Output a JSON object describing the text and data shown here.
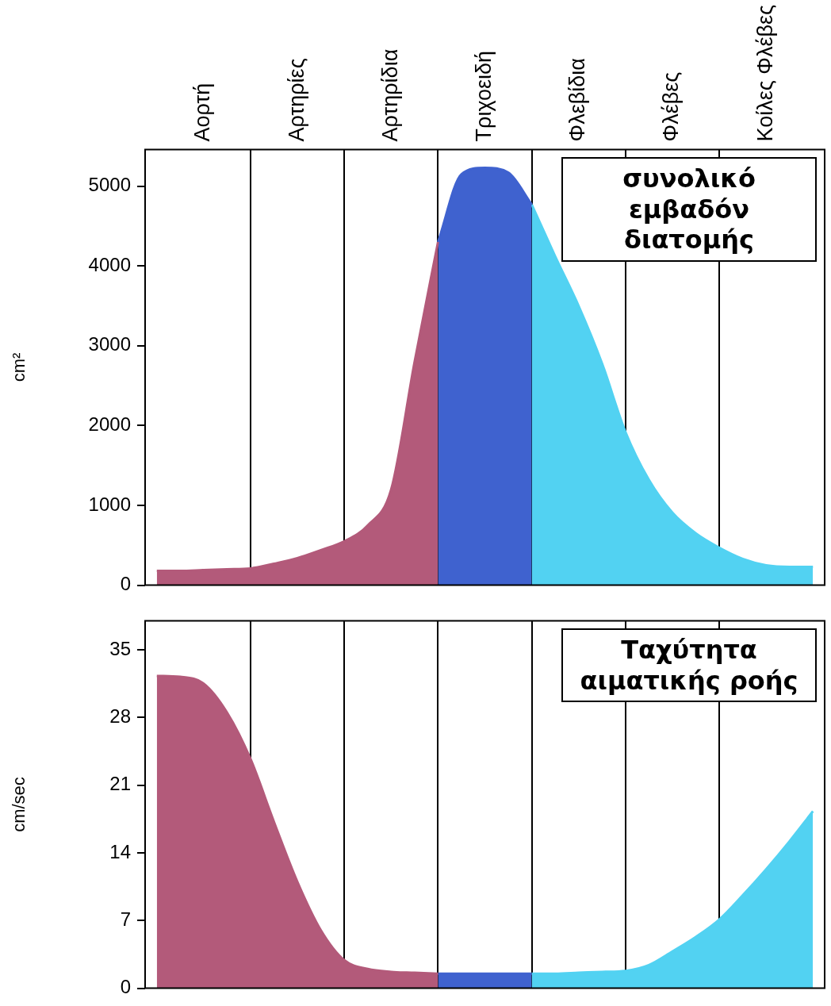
{
  "chart_data": [
    {
      "type": "area",
      "title": "συνολικό εμβαδόν διατομής",
      "ylabel": "cm²",
      "ylim": [
        0,
        5460
      ],
      "categories": [
        null,
        null,
        "Αορτή",
        null,
        null,
        null,
        "Αρτηρίες",
        null,
        null,
        null,
        "Αρτηρίδια",
        null,
        null,
        null,
        "Τριχοειδή",
        null,
        null,
        null,
        "Φλεβίδια",
        null,
        null,
        null,
        "Φλέβες",
        null,
        null,
        null,
        "Κοίλες Φλέβες",
        null,
        null
      ],
      "yticks": [
        0,
        1000,
        2000,
        3000,
        4000,
        5000
      ],
      "grid": "x",
      "legend": false,
      "series": [
        {
          "color": "#b35a7a",
          "values": [
            180,
            180,
            190,
            200,
            210,
            270,
            340,
            440,
            550,
            750,
            1200,
            2800,
            4300,
            null,
            null,
            null,
            null,
            null,
            null,
            null,
            null,
            null,
            null,
            null,
            null,
            null,
            null,
            null,
            null
          ]
        },
        {
          "color": "#3f62cf",
          "values": [
            null,
            null,
            null,
            null,
            null,
            null,
            null,
            null,
            null,
            null,
            null,
            null,
            4300,
            5150,
            5230,
            5170,
            4770,
            null,
            null,
            null,
            null,
            null,
            null,
            null,
            null,
            null,
            null,
            null,
            null
          ]
        },
        {
          "color": "#52d2f2",
          "values": [
            null,
            null,
            null,
            null,
            null,
            null,
            null,
            null,
            null,
            null,
            null,
            null,
            null,
            null,
            null,
            null,
            4770,
            4120,
            3500,
            2780,
            1920,
            1320,
            910,
            650,
            470,
            330,
            250,
            230,
            230
          ]
        }
      ]
    },
    {
      "type": "area",
      "title": "Ταχύτητα αιματικής ροής",
      "ylabel": "cm/sec",
      "ylim": [
        0,
        38
      ],
      "categories": [
        null,
        null,
        null,
        null,
        null,
        null,
        null,
        null,
        null,
        null,
        null,
        null,
        null,
        null,
        null,
        null,
        null,
        null,
        null,
        null,
        null,
        null,
        null,
        null,
        null,
        null,
        null,
        null,
        null
      ],
      "yticks": [
        0,
        7,
        14,
        21,
        28,
        35
      ],
      "grid": "x",
      "legend": false,
      "tick_labels": "y",
      "series": [
        {
          "color": "#b35a7a",
          "values": [
            32.3,
            32.2,
            31.5,
            28.5,
            23.7,
            17.2,
            11,
            6,
            2.9,
            2,
            1.7,
            1.6,
            1.5,
            null,
            null,
            null,
            null,
            null,
            null,
            null,
            null,
            null,
            null,
            null,
            null,
            null,
            null,
            null,
            null
          ]
        },
        {
          "color": "#3f62cf",
          "values": [
            null,
            null,
            null,
            null,
            null,
            null,
            null,
            null,
            null,
            null,
            null,
            null,
            1.5,
            1.5,
            1.5,
            1.5,
            1.5,
            null,
            null,
            null,
            null,
            null,
            null,
            null,
            null,
            null,
            null,
            null,
            null
          ]
        },
        {
          "color": "#52d2f2",
          "values": [
            null,
            null,
            null,
            null,
            null,
            null,
            null,
            null,
            null,
            null,
            null,
            null,
            null,
            null,
            null,
            null,
            1.5,
            1.5,
            1.6,
            1.7,
            1.8,
            2.4,
            3.8,
            5.3,
            7.1,
            9.6,
            12.3,
            15.2,
            18.3
          ]
        }
      ]
    }
  ]
}
